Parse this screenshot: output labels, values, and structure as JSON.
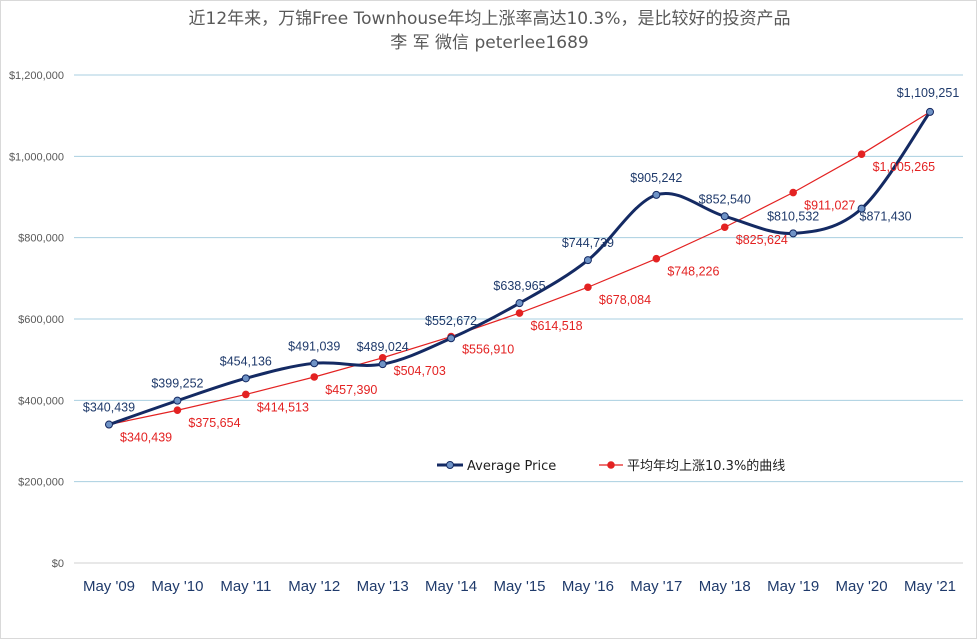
{
  "chart_data": {
    "type": "line",
    "title": "近12年来，万锦Free Townhouse年均上涨率高达10.3%，是比较好的投资产品",
    "subtitle": "李 军  微信 peterlee1689",
    "categories": [
      "May '09",
      "May '10",
      "May '11",
      "May '12",
      "May '13",
      "May '14",
      "May '15",
      "May '16",
      "May '17",
      "May '18",
      "May '19",
      "May '20",
      "May '21"
    ],
    "series": [
      {
        "name": "Average Price",
        "color": "#142a63",
        "values": [
          340439,
          399252,
          454136,
          491039,
          489024,
          552672,
          638965,
          744739,
          905242,
          852540,
          810532,
          871430,
          1109251
        ],
        "labels": [
          "$340,439",
          "$399,252",
          "$454,136",
          "$491,039",
          "$489,024",
          "$552,672",
          "$638,965",
          "$744,739",
          "$905,242",
          "$852,540",
          "$810,532",
          "$871,430",
          "$1,109,251"
        ]
      },
      {
        "name": "平均年均上涨10.3%的曲线",
        "color": "#e32222",
        "values": [
          340439,
          375654,
          414513,
          457390,
          504703,
          556910,
          614518,
          678084,
          748226,
          825624,
          911027,
          1005265,
          1109251
        ],
        "labels": [
          "$340,439",
          "$375,654",
          "$414,513",
          "$457,390",
          "$504,703",
          "$556,910",
          "$614,518",
          "$678,084",
          "$748,226",
          "$825,624",
          "$911,027",
          "$1,005,265",
          ""
        ]
      }
    ],
    "ylim": [
      0,
      1200000
    ],
    "yticks": [
      "$0",
      "$200,000",
      "$400,000",
      "$600,000",
      "$800,000",
      "$1,000,000",
      "$1,200,000"
    ],
    "grid": true,
    "legend": "inside-bottom-center"
  }
}
